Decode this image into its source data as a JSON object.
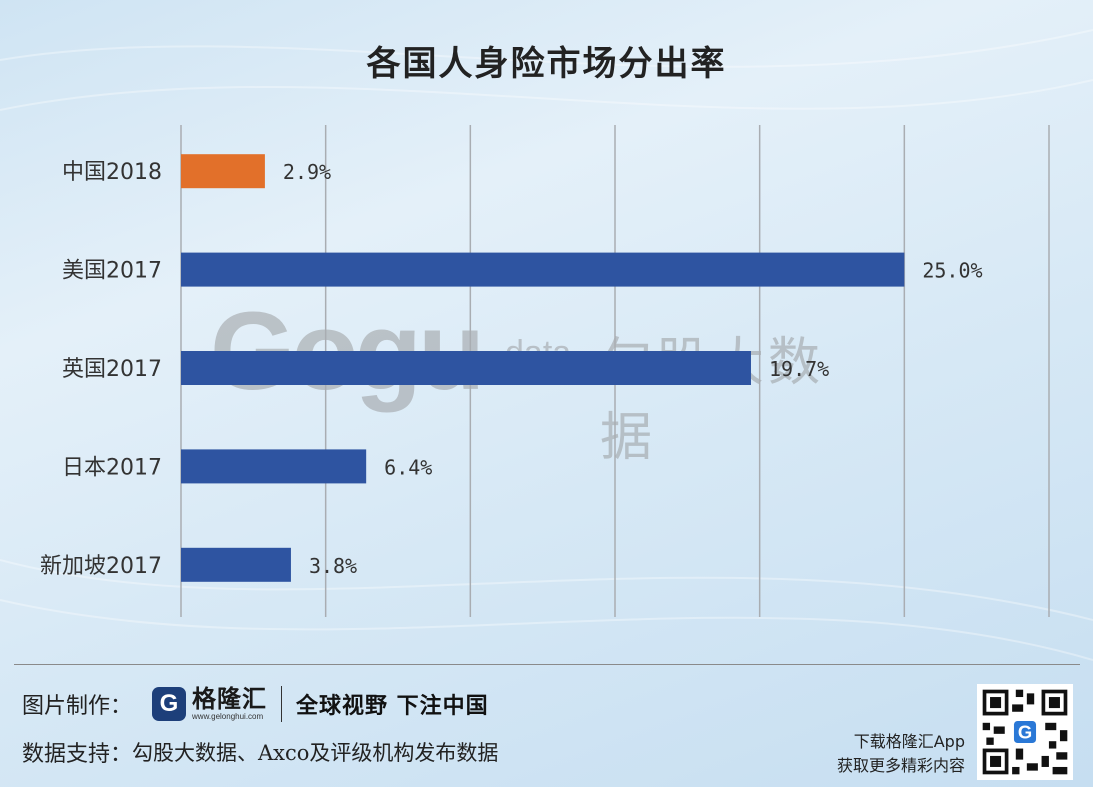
{
  "title": "各国人身险市场分出率",
  "chart_data": {
    "type": "bar",
    "orientation": "horizontal",
    "categories": [
      "中国2018",
      "美国2017",
      "英国2017",
      "日本2017",
      "新加坡2017"
    ],
    "values": [
      2.9,
      25.0,
      19.7,
      6.4,
      3.8
    ],
    "value_labels": [
      "2.9%",
      "25.0%",
      "19.7%",
      "6.4%",
      "3.8%"
    ],
    "colors": [
      "#E2702A",
      "#2E54A1",
      "#2E54A1",
      "#2E54A1",
      "#2E54A1"
    ],
    "xlim": [
      0,
      30
    ],
    "grid": true
  },
  "watermark": {
    "logo": "Gogu",
    "sub": "data",
    "cn": "勾股大数据"
  },
  "footer": {
    "made_by_label": "图片制作：",
    "brand_name": "格隆汇",
    "brand_url": "www.gelonghui.com",
    "slogan": "全球视野 下注中国",
    "source_label": "数据支持：",
    "source_text": "勾股大数据、Axco及评级机构发布数据",
    "app_line1": "下载格隆汇App",
    "app_line2": "获取更多精彩内容"
  },
  "icons": {
    "brand": "gelonghui-logo-icon",
    "qr": "qr-code-icon"
  }
}
